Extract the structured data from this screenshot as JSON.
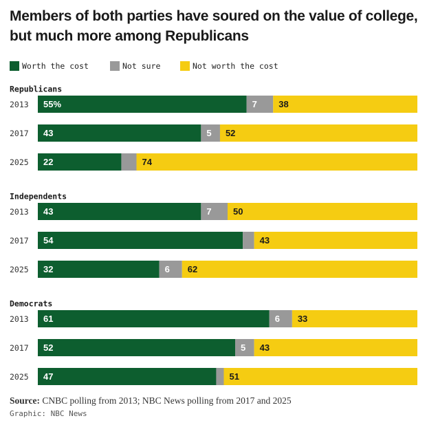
{
  "title": "Members of both parties have soured on the value of college, but much more among Republicans",
  "legend": [
    {
      "label": "Worth the cost",
      "color": "#0d5e2f"
    },
    {
      "label": "Not sure",
      "color": "#999999"
    },
    {
      "label": "Not worth the cost",
      "color": "#f5cc12"
    }
  ],
  "footer": {
    "source_label": "Source:",
    "source_text": " CNBC polling from 2013; NBC News polling from 2017 and 2025",
    "credit": "Graphic: NBC News"
  },
  "chart_data": {
    "type": "bar",
    "orientation": "horizontal",
    "stacked": true,
    "xlim": [
      0,
      100
    ],
    "series_names": [
      "Worth the cost",
      "Not sure",
      "Not worth the cost"
    ],
    "colors": [
      "#0d5e2f",
      "#999999",
      "#f5cc12"
    ],
    "groups": [
      {
        "name": "Republicans",
        "rows": [
          {
            "year": "2013",
            "values": [
              55,
              7,
              38
            ],
            "labels": [
              "55%",
              "7",
              "38"
            ]
          },
          {
            "year": "2017",
            "values": [
              43,
              5,
              52
            ],
            "labels": [
              "43",
              "5",
              "52"
            ]
          },
          {
            "year": "2025",
            "values": [
              22,
              4,
              74
            ],
            "labels": [
              "22",
              "",
              "74"
            ]
          }
        ]
      },
      {
        "name": "Independents",
        "rows": [
          {
            "year": "2013",
            "values": [
              43,
              7,
              50
            ],
            "labels": [
              "43",
              "7",
              "50"
            ]
          },
          {
            "year": "2017",
            "values": [
              54,
              3,
              43
            ],
            "labels": [
              "54",
              "",
              "43"
            ]
          },
          {
            "year": "2025",
            "values": [
              32,
              6,
              62
            ],
            "labels": [
              "32",
              "6",
              "62"
            ]
          }
        ]
      },
      {
        "name": "Democrats",
        "rows": [
          {
            "year": "2013",
            "values": [
              61,
              6,
              33
            ],
            "labels": [
              "61",
              "6",
              "33"
            ]
          },
          {
            "year": "2017",
            "values": [
              52,
              5,
              43
            ],
            "labels": [
              "52",
              "5",
              "43"
            ]
          },
          {
            "year": "2025",
            "values": [
              47,
              2,
              51
            ],
            "labels": [
              "47",
              "",
              "51"
            ]
          }
        ]
      }
    ]
  }
}
